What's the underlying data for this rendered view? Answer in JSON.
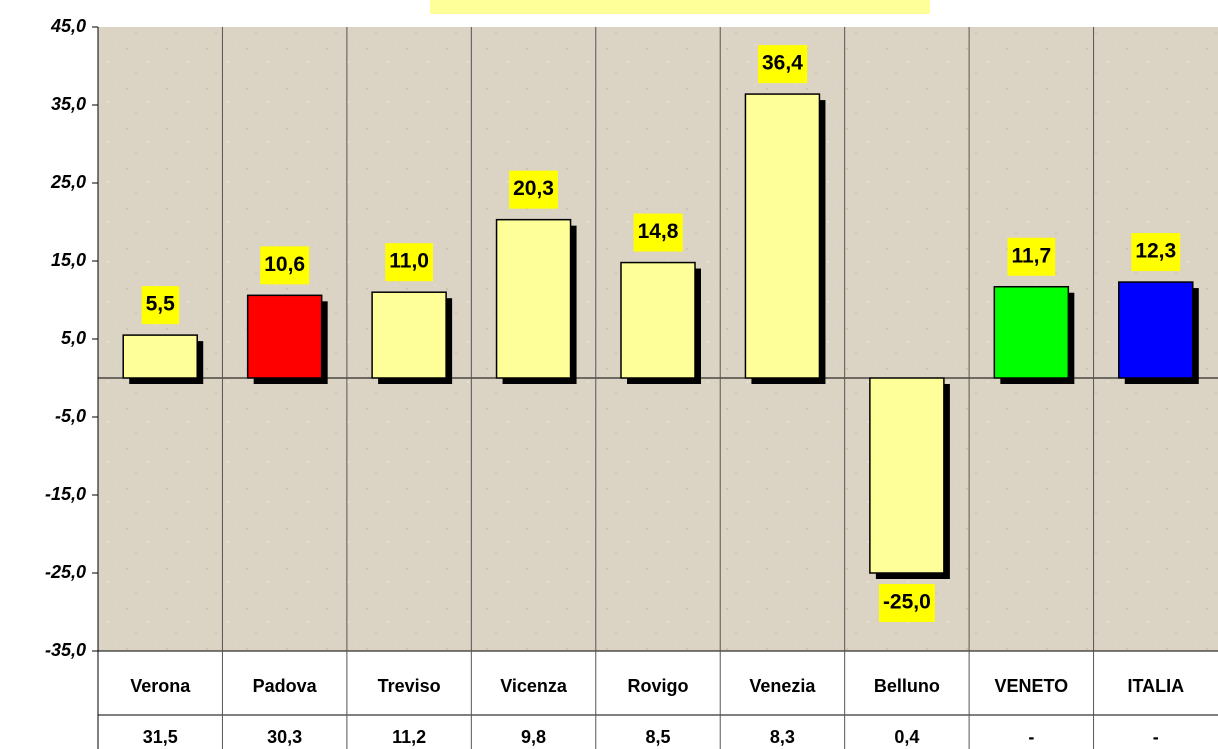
{
  "chart_data": {
    "type": "bar",
    "categories": [
      "Verona",
      "Padova",
      "Treviso",
      "Vicenza",
      "Rovigo",
      "Venezia",
      "Belluno",
      "VENETO",
      "ITALIA"
    ],
    "values": [
      5.5,
      10.6,
      11.0,
      20.3,
      14.8,
      36.4,
      -25.0,
      11.7,
      12.3
    ],
    "value_labels": [
      "5,5",
      "10,6",
      "11,0",
      "20,3",
      "14,8",
      "36,4",
      "-25,0",
      "11,7",
      "12,3"
    ],
    "colors": [
      "#ffff99",
      "#ff0000",
      "#ffff99",
      "#ffff99",
      "#ffff99",
      "#ffff99",
      "#ffff99",
      "#00ff00",
      "#0000ff"
    ],
    "table_row": [
      "31,5",
      "30,3",
      "11,2",
      "9,8",
      "8,5",
      "8,3",
      "0,4",
      "-",
      "-"
    ],
    "ylim": [
      -35,
      45
    ],
    "yticks": [
      {
        "value": 45,
        "label": "45,0"
      },
      {
        "value": 35,
        "label": "35,0"
      },
      {
        "value": 25,
        "label": "25,0"
      },
      {
        "value": 15,
        "label": "15,0"
      },
      {
        "value": 5,
        "label": "5,0"
      },
      {
        "value": -5,
        "label": "-5,0"
      },
      {
        "value": -15,
        "label": "-15,0"
      },
      {
        "value": -25,
        "label": "-25,0"
      },
      {
        "value": -35,
        "label": "-35,0"
      }
    ]
  }
}
